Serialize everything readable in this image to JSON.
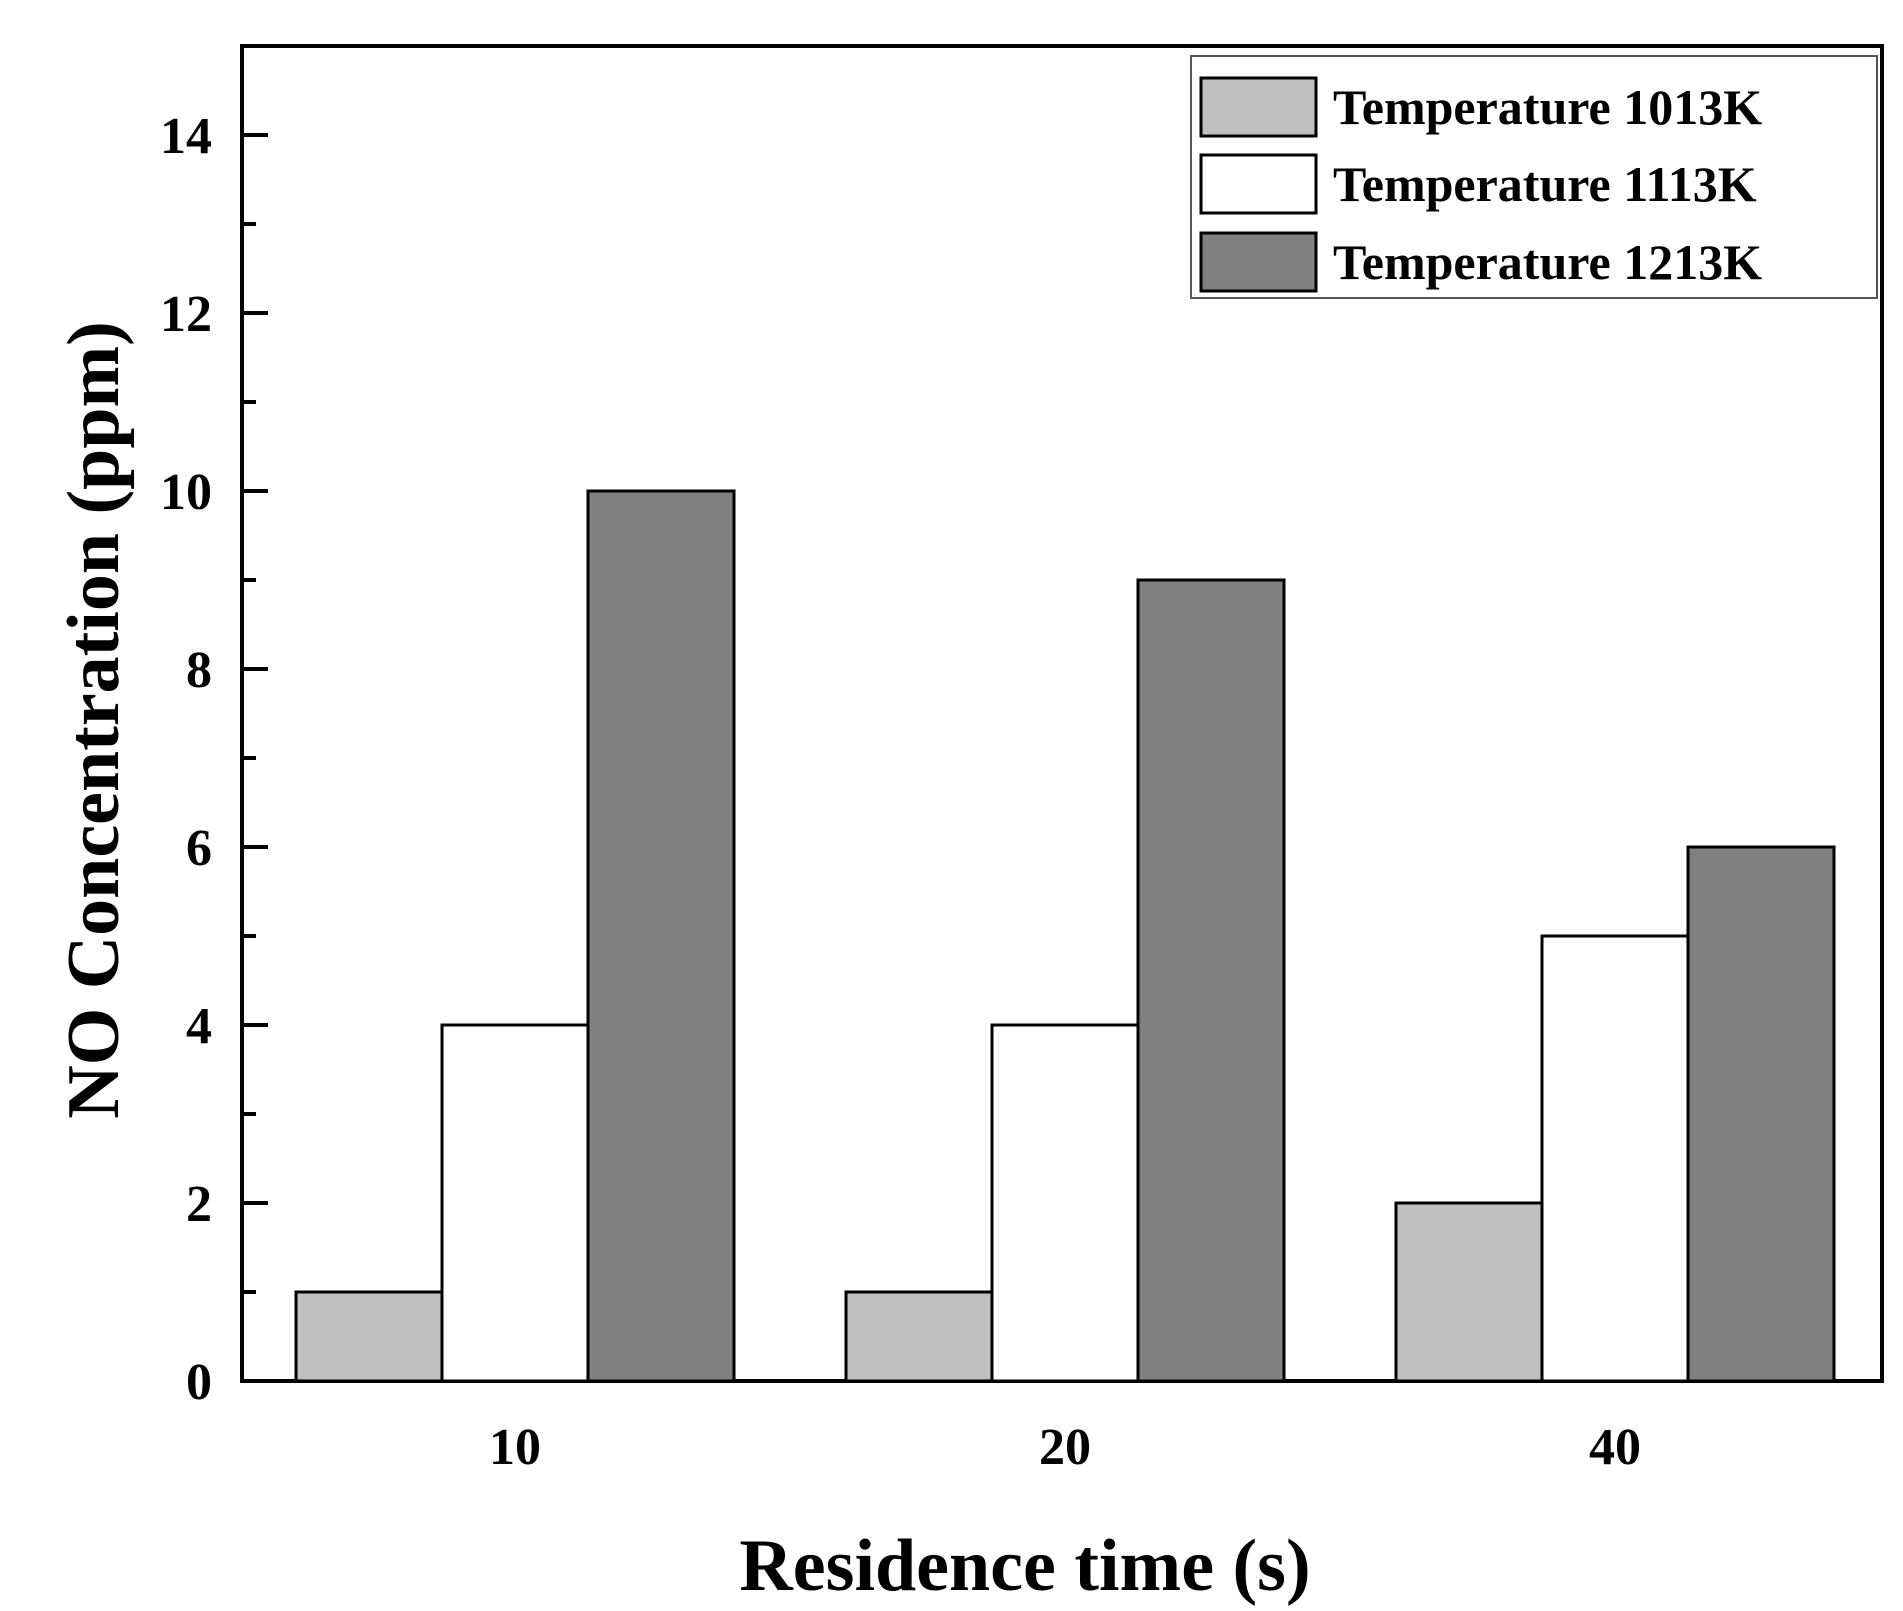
{
  "chart_data": {
    "type": "bar",
    "title": "",
    "xlabel": "Residence time (s)",
    "ylabel": "NO Concentration (ppm)",
    "categories": [
      "10",
      "20",
      "40"
    ],
    "ylim": [
      0,
      15
    ],
    "yticks": [
      0,
      2,
      4,
      6,
      8,
      10,
      12,
      14
    ],
    "ytick_labels": [
      "0",
      "2",
      "4",
      "6",
      "8",
      "10",
      "12",
      "14"
    ],
    "minor_yticks": [
      1,
      3,
      5,
      7,
      9,
      11,
      13
    ],
    "grid": false,
    "legend_position": "top-right",
    "series": [
      {
        "name": "Temperature 1013K",
        "color": "#c0c0c0",
        "values": [
          1,
          1,
          2
        ]
      },
      {
        "name": "Temperature 1113K",
        "color": "#ffffff",
        "values": [
          4,
          4,
          5
        ]
      },
      {
        "name": "Temperature 1213K",
        "color": "#808080",
        "values": [
          10,
          9,
          6
        ]
      }
    ]
  }
}
